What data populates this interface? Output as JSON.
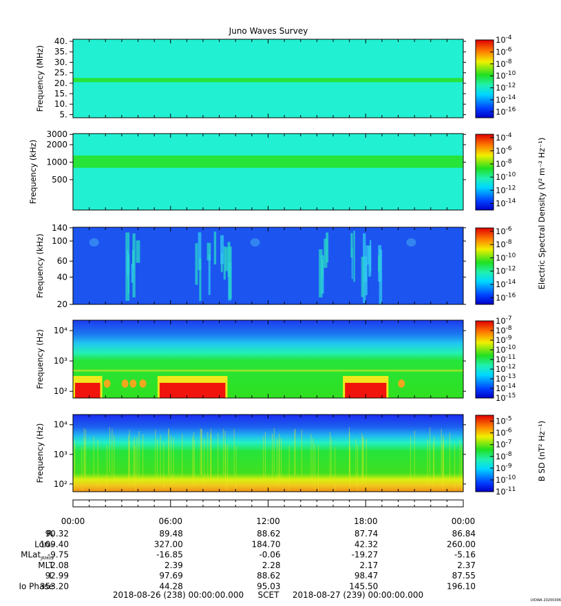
{
  "title": "Juno Waves Survey",
  "footer": {
    "start": "2018-08-26 (238) 00:00:00.000",
    "mid": "SCET",
    "end": "2018-08-27 (239) 00:00:00.000",
    "stamp": "UIOWA 20200306"
  },
  "colorbar_labels": {
    "electric": "Electric Spectral Density (V² m⁻² Hz⁻¹)",
    "magnetic": "B SD (nT² Hz⁻¹)"
  },
  "time_ticks": [
    "00:00",
    "06:00",
    "12:00",
    "18:00",
    "00:00"
  ],
  "ephemeris": [
    {
      "label": "Rⱼ",
      "values": [
        "90.32",
        "89.48",
        "88.62",
        "87.74",
        "86.84"
      ]
    },
    {
      "label": "Lonᵢᵢᵢ",
      "values": [
        "109.40",
        "327.00",
        "184.70",
        "42.32",
        "260.00"
      ]
    },
    {
      "label": "MLat",
      "sub": "JRM09",
      "values": [
        "-9.75",
        "-16.85",
        "-0.06",
        "-19.27",
        "-5.16"
      ]
    },
    {
      "label": "MLT",
      "values": [
        "2.08",
        "2.39",
        "2.28",
        "2.17",
        "2.37"
      ]
    },
    {
      "label": "L",
      "values": [
        "92.99",
        "97.69",
        "88.62",
        "98.47",
        "87.55"
      ]
    },
    {
      "label": "Io Phase",
      "values": [
        "353.20",
        "44.28",
        "95.03",
        "145.50",
        "196.10"
      ]
    }
  ],
  "colors": {
    "cyan": "#22f0d2",
    "green": "#26e43a",
    "blue": "#1c54f0",
    "red": "#f0140c",
    "yellow": "#f0e81c"
  },
  "chart_data": [
    {
      "type": "heatmap",
      "ylabel": "Frequency (MHz)",
      "yscale": "linear",
      "ylim": [
        3.5,
        41
      ],
      "yticks": [
        "40.",
        "35.",
        "30.",
        "25.",
        "20.",
        "15.",
        "10.",
        "5."
      ],
      "ytick_values": [
        40,
        35,
        30,
        25,
        20,
        15,
        10,
        5
      ],
      "cbar_ticks": [
        "-4",
        "-6",
        "-8",
        "-10",
        "-12",
        "-14",
        "-16"
      ],
      "cbar_range": [
        -17,
        -4
      ],
      "background": "cyan",
      "bands": [
        {
          "ymin": 20.5,
          "ymax": 22.5,
          "color": "green"
        }
      ]
    },
    {
      "type": "heatmap",
      "ylabel": "Frequency (kHz)",
      "yscale": "log",
      "ylim": [
        150,
        3100
      ],
      "yticks": [
        "3000",
        "2000",
        "1000",
        "500"
      ],
      "ytick_values": [
        3000,
        2000,
        1000,
        500
      ],
      "cbar_ticks": [
        "-4",
        "-6",
        "-8",
        "-10",
        "-12",
        "-14"
      ],
      "cbar_range": [
        -15,
        -3.5
      ],
      "background": "cyan",
      "bands": [
        {
          "ymin": 800,
          "ymax": 1300,
          "color": "green"
        }
      ]
    },
    {
      "type": "heatmap",
      "ylabel": "Frequency (kHz)",
      "yscale": "log",
      "ylim": [
        20,
        142
      ],
      "yticks": [
        "140",
        "100",
        "60",
        "40",
        "20"
      ],
      "ytick_values": [
        140,
        100,
        60,
        40,
        20
      ],
      "cbar_ticks": [
        "-6",
        "-8",
        "-10",
        "-12",
        "-14",
        "-16"
      ],
      "cbar_range": [
        -17,
        -5.5
      ],
      "background": "blue",
      "emission_bursts_hours": [
        [
          3.0,
          4.3
        ],
        [
          7.5,
          9.6
        ],
        [
          15.1,
          16.0
        ],
        [
          16.9,
          19.0
        ]
      ]
    },
    {
      "type": "heatmap",
      "ylabel": "Frequency (Hz)",
      "yscale": "log",
      "ylim": [
        60,
        22000
      ],
      "yticks": [
        "10⁴",
        "10³",
        "10²"
      ],
      "ytick_values": [
        10000,
        1000,
        100
      ],
      "cbar_ticks": [
        "-7",
        "-8",
        "-9",
        "-10",
        "-11",
        "-12",
        "-13",
        "-14",
        "-15"
      ],
      "cbar_range": [
        -15,
        -7
      ],
      "background": "green",
      "intense_intervals_hours": [
        [
          0.0,
          1.8
        ],
        [
          5.2,
          9.5
        ],
        [
          16.6,
          19.4
        ]
      ]
    },
    {
      "type": "heatmap",
      "ylabel": "Frequency (Hz)",
      "yscale": "log",
      "ylim": [
        55,
        22000
      ],
      "yticks": [
        "10⁴",
        "10³",
        "10²"
      ],
      "ytick_values": [
        10000,
        1000,
        100
      ],
      "cbar_ticks": [
        "-5",
        "-6",
        "-7",
        "-8",
        "-9",
        "-10",
        "-11"
      ],
      "cbar_range": [
        -11,
        -4.5
      ],
      "background": "green"
    }
  ]
}
